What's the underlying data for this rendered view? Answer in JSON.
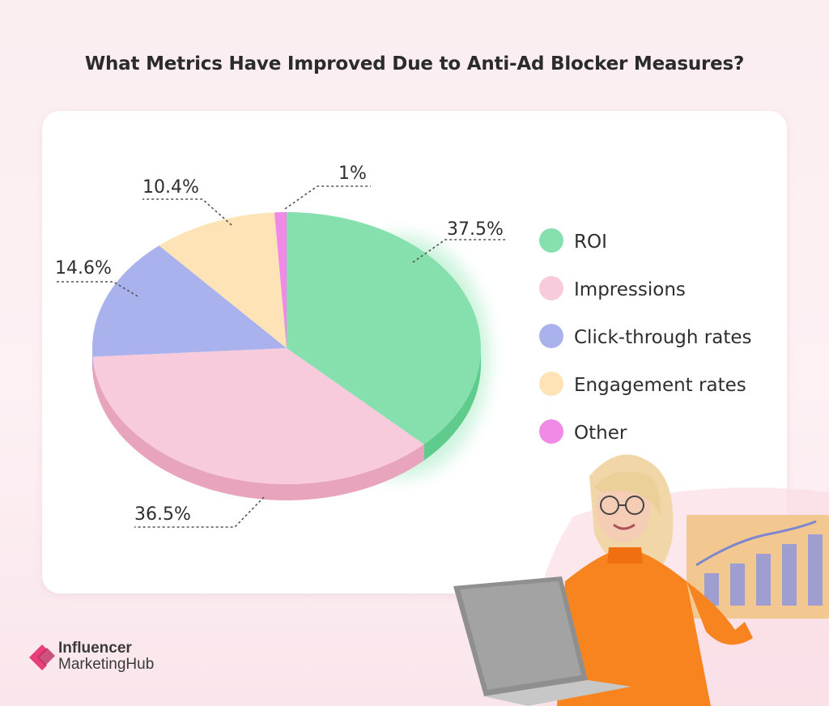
{
  "title": "What Metrics Have Improved Due to Anti-Ad Blocker Measures?",
  "logo": {
    "line1": "Influencer",
    "line2": "MarketingHub"
  },
  "chart_data": {
    "type": "pie",
    "title": "What Metrics Have Improved Due to Anti-Ad Blocker Measures?",
    "legend_position": "right",
    "slices": [
      {
        "label": "ROI",
        "value": 37.5,
        "display": "37.5%",
        "color": "#86e0ae",
        "side_color": "#5fcb8d"
      },
      {
        "label": "Impressions",
        "value": 36.5,
        "display": "36.5%",
        "color": "#f7cbdb",
        "side_color": "#e9a4bd"
      },
      {
        "label": "Click-through rates",
        "value": 14.6,
        "display": "14.6%",
        "color": "#aab2ee",
        "side_color": "#8e97dc"
      },
      {
        "label": "Engagement rates",
        "value": 10.4,
        "display": "10.4%",
        "color": "#fde3b6",
        "side_color": "#efcf94"
      },
      {
        "label": "Other",
        "value": 1,
        "display": "1%",
        "color": "#f08ae6",
        "side_color": "#d86cd0"
      }
    ]
  }
}
